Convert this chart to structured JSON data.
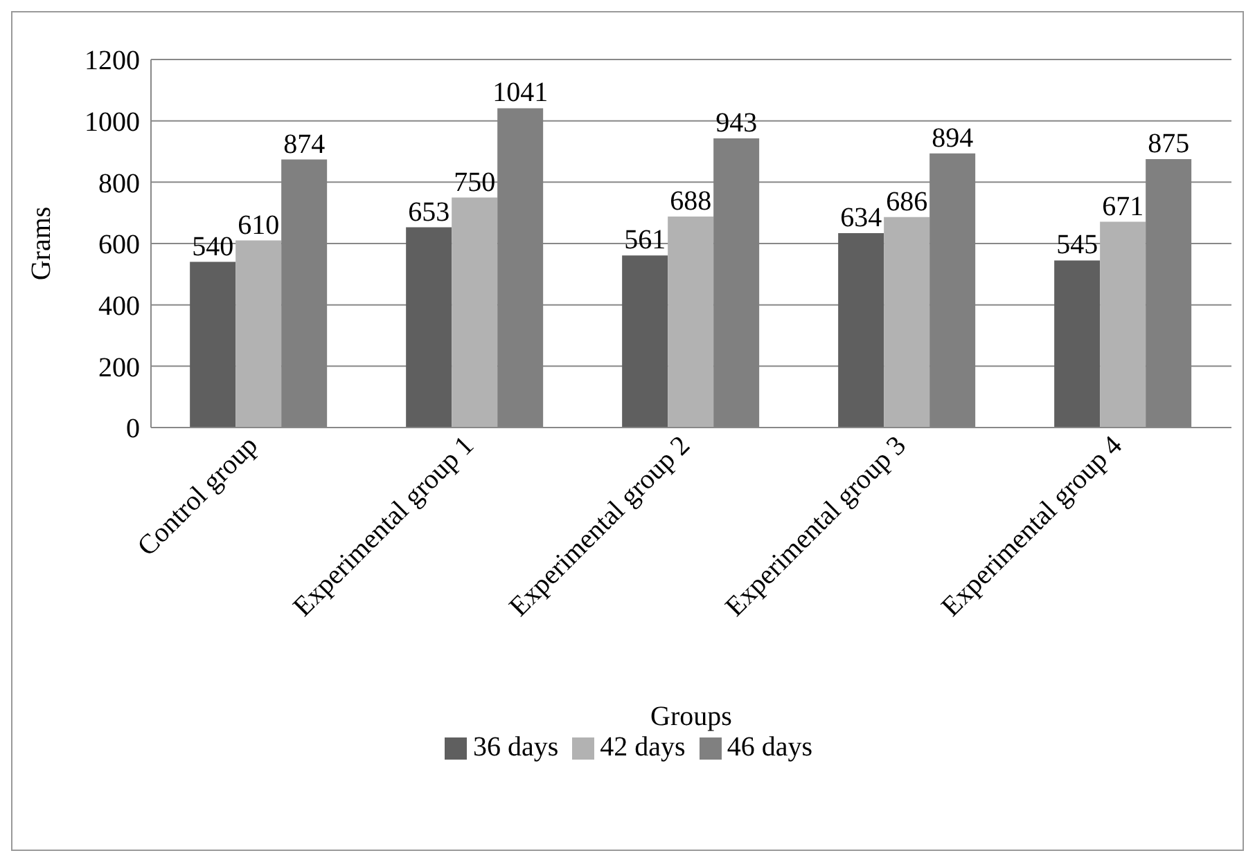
{
  "chart_data": {
    "type": "bar",
    "xlabel": "Groups",
    "ylabel": "Grams",
    "categories": [
      "Control group",
      "Experimental group 1",
      "Experimental group 2",
      "Experimental group 3",
      "Experimental group 4"
    ],
    "series": [
      {
        "name": "36 days",
        "color": "#5f5f5f",
        "values": [
          540,
          653,
          561,
          634,
          545
        ]
      },
      {
        "name": "42 days",
        "color": "#b2b2b2",
        "values": [
          610,
          750,
          688,
          686,
          671
        ]
      },
      {
        "name": "46 days",
        "color": "#808080",
        "values": [
          874,
          1041,
          943,
          894,
          875
        ]
      }
    ],
    "ylim": [
      0,
      1200
    ],
    "yticks": [
      0,
      200,
      400,
      600,
      800,
      1000,
      1200
    ],
    "grid": "y",
    "legend": "bottom",
    "data_labels": true
  }
}
